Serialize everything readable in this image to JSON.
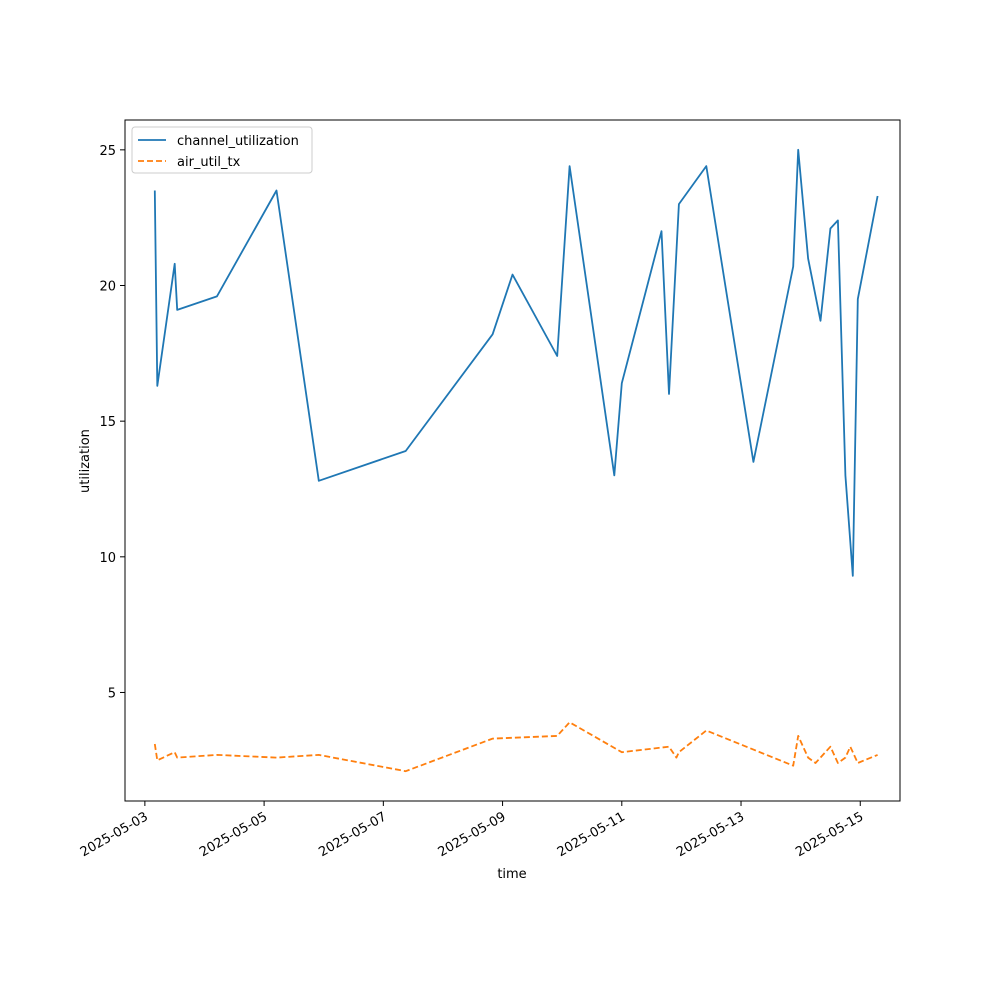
{
  "chart_data": {
    "type": "line",
    "title": "",
    "xlabel": "time",
    "ylabel": "utilization",
    "x_type": "datetime",
    "xlim": [
      "2025-05-02T16:00",
      "2025-05-15T16:00"
    ],
    "ylim": [
      1.0,
      26.1
    ],
    "x_ticks": [
      "2025-05-03",
      "2025-05-05",
      "2025-05-07",
      "2025-05-09",
      "2025-05-11",
      "2025-05-13",
      "2025-05-15"
    ],
    "y_ticks": [
      5,
      10,
      15,
      20,
      25
    ],
    "grid": false,
    "legend_position": "upper left",
    "series": [
      {
        "name": "channel_utilization",
        "color": "#1f77b4",
        "linestyle": "solid",
        "points": [
          [
            "2025-05-03T04:00",
            23.5
          ],
          [
            "2025-05-03T05:00",
            16.3
          ],
          [
            "2025-05-03T12:00",
            20.8
          ],
          [
            "2025-05-03T13:00",
            19.1
          ],
          [
            "2025-05-04T05:00",
            19.6
          ],
          [
            "2025-05-05T05:00",
            23.5
          ],
          [
            "2025-05-05T22:00",
            12.8
          ],
          [
            "2025-05-07T09:00",
            13.9
          ],
          [
            "2025-05-08T20:00",
            18.2
          ],
          [
            "2025-05-09T04:00",
            20.4
          ],
          [
            "2025-05-09T22:00",
            17.4
          ],
          [
            "2025-05-10T03:00",
            24.4
          ],
          [
            "2025-05-10T21:00",
            13.0
          ],
          [
            "2025-05-11T00:00",
            16.4
          ],
          [
            "2025-05-11T16:00",
            22.0
          ],
          [
            "2025-05-11T19:00",
            16.0
          ],
          [
            "2025-05-11T23:00",
            23.0
          ],
          [
            "2025-05-12T10:00",
            24.4
          ],
          [
            "2025-05-13T05:00",
            13.5
          ],
          [
            "2025-05-13T21:00",
            20.7
          ],
          [
            "2025-05-13T23:00",
            25.0
          ],
          [
            "2025-05-14T03:00",
            21.0
          ],
          [
            "2025-05-14T08:00",
            18.7
          ],
          [
            "2025-05-14T12:00",
            22.1
          ],
          [
            "2025-05-14T15:00",
            22.4
          ],
          [
            "2025-05-14T18:00",
            13.0
          ],
          [
            "2025-05-14T21:00",
            9.3
          ],
          [
            "2025-05-14T23:00",
            19.5
          ],
          [
            "2025-05-15T07:00",
            23.3
          ]
        ]
      },
      {
        "name": "air_util_tx",
        "color": "#ff7f0e",
        "linestyle": "dashed",
        "points": [
          [
            "2025-05-03T04:00",
            3.1
          ],
          [
            "2025-05-03T05:00",
            2.5
          ],
          [
            "2025-05-03T12:00",
            2.8
          ],
          [
            "2025-05-03T13:00",
            2.6
          ],
          [
            "2025-05-04T05:00",
            2.7
          ],
          [
            "2025-05-05T05:00",
            2.6
          ],
          [
            "2025-05-05T22:00",
            2.7
          ],
          [
            "2025-05-07T09:00",
            2.1
          ],
          [
            "2025-05-08T20:00",
            3.3
          ],
          [
            "2025-05-09T22:00",
            3.4
          ],
          [
            "2025-05-10T03:00",
            3.9
          ],
          [
            "2025-05-11T00:00",
            2.8
          ],
          [
            "2025-05-11T19:00",
            3.0
          ],
          [
            "2025-05-11T22:00",
            2.6
          ],
          [
            "2025-05-11T23:00",
            2.8
          ],
          [
            "2025-05-12T10:00",
            3.6
          ],
          [
            "2025-05-13T21:00",
            2.3
          ],
          [
            "2025-05-13T23:00",
            3.4
          ],
          [
            "2025-05-14T03:00",
            2.6
          ],
          [
            "2025-05-14T06:00",
            2.4
          ],
          [
            "2025-05-14T12:00",
            3.0
          ],
          [
            "2025-05-14T15:00",
            2.4
          ],
          [
            "2025-05-14T18:00",
            2.6
          ],
          [
            "2025-05-14T20:00",
            3.0
          ],
          [
            "2025-05-14T23:00",
            2.4
          ],
          [
            "2025-05-15T07:00",
            2.7
          ]
        ]
      }
    ]
  }
}
